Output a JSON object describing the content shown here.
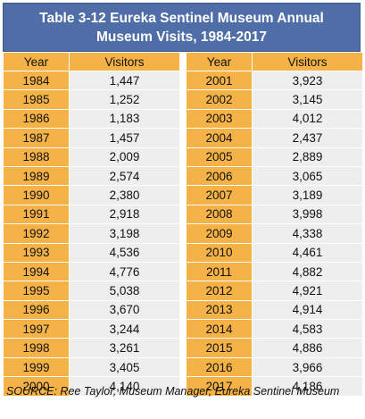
{
  "table": {
    "title_line1": "Table 3-12 Eureka Sentinel Museum Annual",
    "title_line2": "Museum Visits, 1984-2017",
    "headers": {
      "year": "Year",
      "visitors": "Visitors"
    },
    "left_rows": [
      {
        "year": "1984",
        "visitors": "1,447"
      },
      {
        "year": "1985",
        "visitors": "1,252"
      },
      {
        "year": "1986",
        "visitors": "1,183"
      },
      {
        "year": "1987",
        "visitors": "1,457"
      },
      {
        "year": "1988",
        "visitors": "2,009"
      },
      {
        "year": "1989",
        "visitors": "2,574"
      },
      {
        "year": "1990",
        "visitors": "2,380"
      },
      {
        "year": "1991",
        "visitors": "2,918"
      },
      {
        "year": "1992",
        "visitors": "3,198"
      },
      {
        "year": "1993",
        "visitors": "4,536"
      },
      {
        "year": "1994",
        "visitors": "4,776"
      },
      {
        "year": "1995",
        "visitors": "5,038"
      },
      {
        "year": "1996",
        "visitors": "3,670"
      },
      {
        "year": "1997",
        "visitors": "3,244"
      },
      {
        "year": "1998",
        "visitors": "3,261"
      },
      {
        "year": "1999",
        "visitors": "3,405"
      },
      {
        "year": "2000",
        "visitors": "4,140"
      }
    ],
    "right_rows": [
      {
        "year": "2001",
        "visitors": "3,923"
      },
      {
        "year": "2002",
        "visitors": "3,145"
      },
      {
        "year": "2003",
        "visitors": "4,012"
      },
      {
        "year": "2004",
        "visitors": "2,437"
      },
      {
        "year": "2005",
        "visitors": "2,889"
      },
      {
        "year": "2006",
        "visitors": "3,065"
      },
      {
        "year": "2007",
        "visitors": "3,189"
      },
      {
        "year": "2008",
        "visitors": "3,998"
      },
      {
        "year": "2009",
        "visitors": "4,338"
      },
      {
        "year": "2010",
        "visitors": "4,461"
      },
      {
        "year": "2011",
        "visitors": "4,882"
      },
      {
        "year": "2012",
        "visitors": "4,921"
      },
      {
        "year": "2013",
        "visitors": "4,914"
      },
      {
        "year": "2014",
        "visitors": "4,583"
      },
      {
        "year": "2015",
        "visitors": "4,886"
      },
      {
        "year": "2016",
        "visitors": "3,966"
      },
      {
        "year": "2017",
        "visitors": "4,186"
      }
    ]
  },
  "source": "SOURCE: Ree Taylor, Museum Manager, Eureka Sentinel Museum",
  "colors": {
    "title_bg": "#4f6ea7",
    "year_bg": "#f4b247",
    "value_bg": "#eeeeee"
  }
}
